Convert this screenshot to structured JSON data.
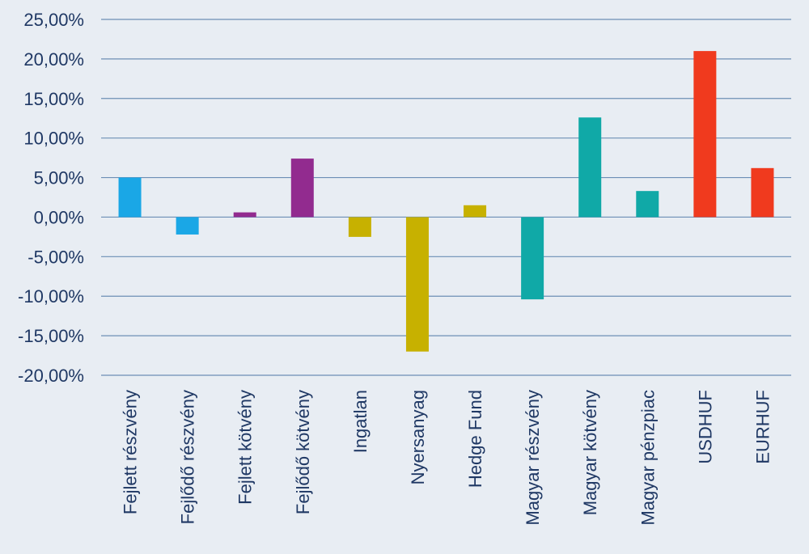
{
  "chart_data": {
    "type": "bar",
    "title": "",
    "xlabel": "",
    "ylabel": "",
    "ylim": [
      -20,
      25
    ],
    "yticks": [
      25,
      20,
      15,
      10,
      5,
      0,
      -5,
      -10,
      -15,
      -20
    ],
    "ytick_labels": [
      "25,00%",
      "20,00%",
      "15,00%",
      "10,00%",
      "5,00%",
      "0,00%",
      "-5,00%",
      "-10,00%",
      "-15,00%",
      "-20,00%"
    ],
    "categories": [
      "Fejlett részvény",
      "Fejlődő részvény",
      "Fejlett kötvény",
      "Fejlődő kötvény",
      "Ingatlan",
      "Nyersanyag",
      "Hedge Fund",
      "Magyar részvény",
      "Magyar kötvény",
      "Magyar pénzpiac",
      "USDHUF",
      "EURHUF"
    ],
    "values": [
      5.0,
      -2.2,
      0.6,
      7.4,
      -2.5,
      -17.0,
      1.5,
      -10.4,
      12.6,
      3.3,
      21.0,
      6.2
    ],
    "colors": [
      "#1aa7e6",
      "#1aa7e6",
      "#922b8f",
      "#922b8f",
      "#c7b100",
      "#c7b100",
      "#c7b100",
      "#10a9a7",
      "#10a9a7",
      "#10a9a7",
      "#f03a1e",
      "#f03a1e"
    ],
    "grid": true
  }
}
